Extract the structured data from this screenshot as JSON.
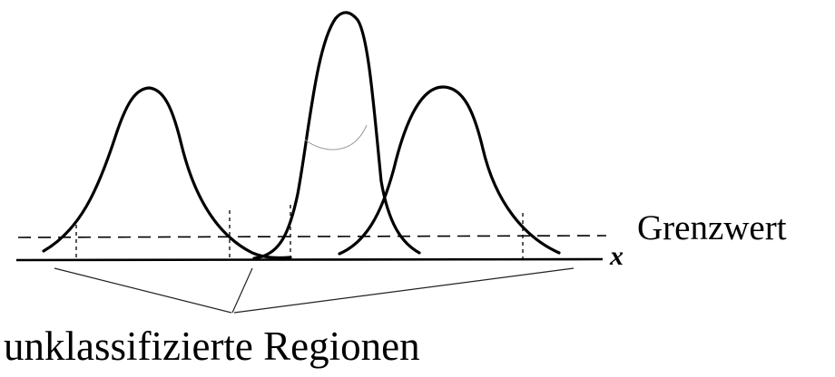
{
  "diagram": {
    "threshold_label": "Grenzwert",
    "region_label": "unklassifizierte Regionen",
    "axis_label": "x",
    "curves": [
      {
        "name": "left-gaussian"
      },
      {
        "name": "center-gaussian"
      },
      {
        "name": "right-gaussian"
      }
    ],
    "unclassified_region_count": 3
  }
}
